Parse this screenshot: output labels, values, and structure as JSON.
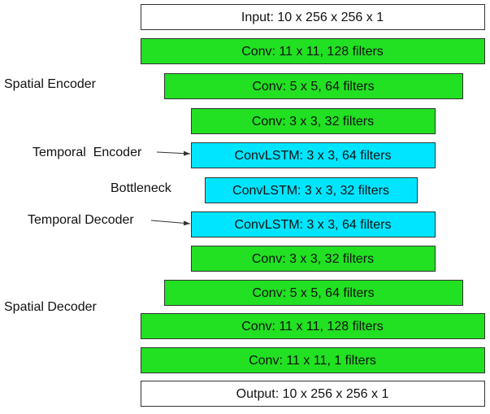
{
  "layers": [
    {
      "label": "Input: 10 x 256 x 256 x 1",
      "color": "#ffffff"
    },
    {
      "label": "Conv: 11 x 11,  128 filters",
      "color": "#22e022"
    },
    {
      "label": "Conv: 5 x 5,  64 filters",
      "color": "#22e022"
    },
    {
      "label": "Conv: 3 x 3,  32 filters",
      "color": "#22e022"
    },
    {
      "label": "ConvLSTM: 3 x 3,  64 filters",
      "color": "#00e5ff"
    },
    {
      "label": "ConvLSTM: 3 x 3,  32 filters",
      "color": "#00e5ff"
    },
    {
      "label": "ConvLSTM: 3 x 3,  64 filters",
      "color": "#00e5ff"
    },
    {
      "label": "Conv: 3 x 3,  32 filters",
      "color": "#22e022"
    },
    {
      "label": "Conv: 5 x 5,  64 filters",
      "color": "#22e022"
    },
    {
      "label": "Conv: 11 x 11,  128 filters",
      "color": "#22e022"
    },
    {
      "label": "Conv: 11 x 11,  1 filters",
      "color": "#22e022"
    },
    {
      "label": "Output: 10 x 256 x 256 x 1",
      "color": "#ffffff"
    }
  ],
  "annotations": [
    {
      "label": "Spatial Encoder"
    },
    {
      "label": "Temporal  Encoder"
    },
    {
      "label": "Bottleneck"
    },
    {
      "label": "Temporal Decoder"
    },
    {
      "label": "Spatial Decoder"
    }
  ]
}
